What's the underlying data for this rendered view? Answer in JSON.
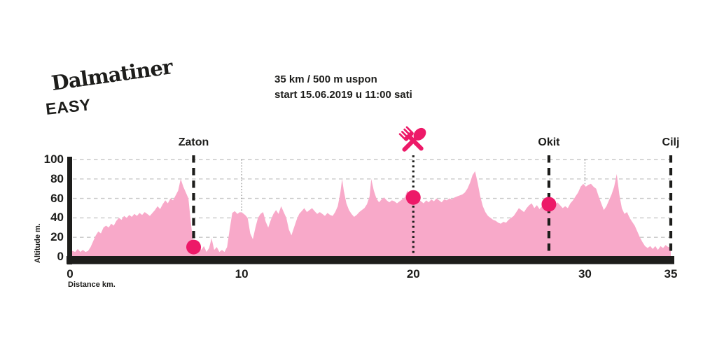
{
  "logo": {
    "title": "Dalmatiner",
    "subtitle": "EASY"
  },
  "info": {
    "line1": "35 km / 500 m uspon",
    "line2": "start 15.06.2019 u 11:00 sati"
  },
  "colors": {
    "area": "#f8a9c9",
    "accent": "#ed1968",
    "axis": "#1d1d1b",
    "grid_horizontal": "#c8c8c8",
    "grid_vertical": "#8c8c8c"
  },
  "chart_data": {
    "type": "area",
    "title": "",
    "xlabel": "Distance km.",
    "ylabel": "Altitude m.",
    "xlim": [
      0,
      35
    ],
    "ylim": [
      0,
      100
    ],
    "x_ticks": [
      0,
      10,
      20,
      30,
      35
    ],
    "y_ticks": [
      0,
      20,
      40,
      60,
      80,
      100
    ],
    "grid": {
      "horizontal": "dashed",
      "vertical_at": [
        10,
        30
      ]
    },
    "markers": [
      {
        "name": "zaton",
        "label": "Zaton",
        "km": 7.2,
        "altitude": 10,
        "dot": true,
        "line_style": "dashed"
      },
      {
        "name": "food-station",
        "label": "",
        "icon": "fork-and-spoon-icon",
        "km": 20,
        "altitude": 61,
        "dot": true,
        "line_style": "dotted"
      },
      {
        "name": "okit",
        "label": "Okit",
        "km": 27.9,
        "altitude": 54,
        "dot": true,
        "line_style": "dashed"
      },
      {
        "name": "cilj",
        "label": "Cilj",
        "km": 35,
        "altitude": null,
        "dot": false,
        "line_style": "dashed"
      }
    ],
    "profile": [
      [
        0,
        4
      ],
      [
        0.15,
        6
      ],
      [
        0.3,
        5
      ],
      [
        0.45,
        8
      ],
      [
        0.6,
        5
      ],
      [
        0.75,
        7
      ],
      [
        0.9,
        5
      ],
      [
        1.05,
        6
      ],
      [
        1.2,
        10
      ],
      [
        1.35,
        16
      ],
      [
        1.5,
        22
      ],
      [
        1.65,
        26
      ],
      [
        1.8,
        24
      ],
      [
        1.95,
        30
      ],
      [
        2.1,
        32
      ],
      [
        2.25,
        30
      ],
      [
        2.4,
        34
      ],
      [
        2.55,
        32
      ],
      [
        2.7,
        37
      ],
      [
        2.85,
        40
      ],
      [
        3,
        38
      ],
      [
        3.15,
        42
      ],
      [
        3.3,
        40
      ],
      [
        3.45,
        43
      ],
      [
        3.6,
        41
      ],
      [
        3.75,
        44
      ],
      [
        3.9,
        42
      ],
      [
        4.05,
        45
      ],
      [
        4.2,
        43
      ],
      [
        4.35,
        46
      ],
      [
        4.5,
        44
      ],
      [
        4.65,
        42
      ],
      [
        4.8,
        45
      ],
      [
        4.95,
        48
      ],
      [
        5.1,
        52
      ],
      [
        5.25,
        49
      ],
      [
        5.4,
        54
      ],
      [
        5.55,
        58
      ],
      [
        5.7,
        55
      ],
      [
        5.85,
        60
      ],
      [
        6,
        58
      ],
      [
        6.15,
        63
      ],
      [
        6.3,
        68
      ],
      [
        6.45,
        80
      ],
      [
        6.6,
        72
      ],
      [
        6.75,
        66
      ],
      [
        6.9,
        60
      ],
      [
        7,
        42
      ],
      [
        7.1,
        25
      ],
      [
        7.2,
        10
      ],
      [
        7.35,
        8
      ],
      [
        7.5,
        13
      ],
      [
        7.65,
        7
      ],
      [
        7.8,
        11
      ],
      [
        7.95,
        5
      ],
      [
        8.1,
        9
      ],
      [
        8.25,
        19
      ],
      [
        8.4,
        7
      ],
      [
        8.55,
        10
      ],
      [
        8.7,
        5
      ],
      [
        8.85,
        7
      ],
      [
        9,
        5
      ],
      [
        9.15,
        10
      ],
      [
        9.3,
        28
      ],
      [
        9.45,
        45
      ],
      [
        9.6,
        47
      ],
      [
        9.75,
        44
      ],
      [
        9.9,
        46
      ],
      [
        10.05,
        45
      ],
      [
        10.2,
        43
      ],
      [
        10.35,
        40
      ],
      [
        10.5,
        24
      ],
      [
        10.65,
        18
      ],
      [
        10.8,
        30
      ],
      [
        10.95,
        40
      ],
      [
        11.1,
        44
      ],
      [
        11.25,
        46
      ],
      [
        11.4,
        36
      ],
      [
        11.55,
        30
      ],
      [
        11.7,
        38
      ],
      [
        11.85,
        44
      ],
      [
        12,
        48
      ],
      [
        12.15,
        44
      ],
      [
        12.3,
        52
      ],
      [
        12.45,
        46
      ],
      [
        12.6,
        40
      ],
      [
        12.75,
        28
      ],
      [
        12.9,
        22
      ],
      [
        13.05,
        30
      ],
      [
        13.2,
        38
      ],
      [
        13.35,
        44
      ],
      [
        13.5,
        47
      ],
      [
        13.65,
        50
      ],
      [
        13.8,
        46
      ],
      [
        13.95,
        48
      ],
      [
        14.1,
        50
      ],
      [
        14.25,
        47
      ],
      [
        14.4,
        44
      ],
      [
        14.55,
        46
      ],
      [
        14.7,
        44
      ],
      [
        14.85,
        42
      ],
      [
        15,
        45
      ],
      [
        15.15,
        43
      ],
      [
        15.3,
        42
      ],
      [
        15.45,
        46
      ],
      [
        15.6,
        52
      ],
      [
        15.75,
        66
      ],
      [
        15.85,
        80
      ],
      [
        15.95,
        68
      ],
      [
        16.1,
        55
      ],
      [
        16.25,
        48
      ],
      [
        16.4,
        44
      ],
      [
        16.55,
        41
      ],
      [
        16.7,
        43
      ],
      [
        16.85,
        46
      ],
      [
        17,
        48
      ],
      [
        17.15,
        50
      ],
      [
        17.3,
        54
      ],
      [
        17.45,
        62
      ],
      [
        17.55,
        80
      ],
      [
        17.7,
        68
      ],
      [
        17.85,
        60
      ],
      [
        18,
        56
      ],
      [
        18.15,
        59
      ],
      [
        18.3,
        61
      ],
      [
        18.45,
        58
      ],
      [
        18.6,
        56
      ],
      [
        18.75,
        58
      ],
      [
        18.9,
        57
      ],
      [
        19.05,
        55
      ],
      [
        19.2,
        57
      ],
      [
        19.35,
        59
      ],
      [
        19.5,
        61
      ],
      [
        19.65,
        68
      ],
      [
        19.8,
        64
      ],
      [
        20,
        61
      ],
      [
        20.15,
        58
      ],
      [
        20.3,
        60
      ],
      [
        20.45,
        57
      ],
      [
        20.6,
        55
      ],
      [
        20.75,
        58
      ],
      [
        20.9,
        56
      ],
      [
        21.05,
        59
      ],
      [
        21.2,
        57
      ],
      [
        21.35,
        60
      ],
      [
        21.5,
        58
      ],
      [
        21.65,
        56
      ],
      [
        21.8,
        59
      ],
      [
        21.95,
        58
      ],
      [
        22.1,
        60
      ],
      [
        22.25,
        59
      ],
      [
        22.4,
        61
      ],
      [
        22.55,
        62
      ],
      [
        22.7,
        63
      ],
      [
        22.85,
        64
      ],
      [
        23,
        66
      ],
      [
        23.15,
        70
      ],
      [
        23.3,
        76
      ],
      [
        23.45,
        84
      ],
      [
        23.6,
        88
      ],
      [
        23.75,
        76
      ],
      [
        23.9,
        62
      ],
      [
        24.05,
        52
      ],
      [
        24.2,
        46
      ],
      [
        24.35,
        42
      ],
      [
        24.5,
        40
      ],
      [
        24.65,
        38
      ],
      [
        24.8,
        37
      ],
      [
        24.95,
        35
      ],
      [
        25.1,
        34
      ],
      [
        25.25,
        36
      ],
      [
        25.4,
        35
      ],
      [
        25.55,
        38
      ],
      [
        25.7,
        40
      ],
      [
        25.85,
        42
      ],
      [
        26,
        46
      ],
      [
        26.15,
        50
      ],
      [
        26.3,
        48
      ],
      [
        26.45,
        46
      ],
      [
        26.6,
        50
      ],
      [
        26.75,
        53
      ],
      [
        26.9,
        55
      ],
      [
        27.05,
        50
      ],
      [
        27.2,
        53
      ],
      [
        27.35,
        49
      ],
      [
        27.5,
        52
      ],
      [
        27.65,
        50
      ],
      [
        27.8,
        54
      ],
      [
        27.95,
        52
      ],
      [
        28.1,
        50
      ],
      [
        28.25,
        53
      ],
      [
        28.4,
        56
      ],
      [
        28.55,
        53
      ],
      [
        28.7,
        50
      ],
      [
        28.85,
        52
      ],
      [
        29,
        50
      ],
      [
        29.15,
        55
      ],
      [
        29.3,
        58
      ],
      [
        29.45,
        62
      ],
      [
        29.6,
        66
      ],
      [
        29.75,
        72
      ],
      [
        29.9,
        75
      ],
      [
        30.05,
        72
      ],
      [
        30.2,
        74
      ],
      [
        30.35,
        75
      ],
      [
        30.5,
        72
      ],
      [
        30.65,
        70
      ],
      [
        30.8,
        62
      ],
      [
        30.95,
        55
      ],
      [
        31.1,
        48
      ],
      [
        31.25,
        52
      ],
      [
        31.4,
        58
      ],
      [
        31.55,
        64
      ],
      [
        31.7,
        72
      ],
      [
        31.85,
        85
      ],
      [
        32,
        64
      ],
      [
        32.15,
        50
      ],
      [
        32.3,
        44
      ],
      [
        32.45,
        46
      ],
      [
        32.6,
        40
      ],
      [
        32.75,
        36
      ],
      [
        32.9,
        32
      ],
      [
        33.05,
        26
      ],
      [
        33.2,
        20
      ],
      [
        33.35,
        15
      ],
      [
        33.5,
        11
      ],
      [
        33.65,
        9
      ],
      [
        33.8,
        11
      ],
      [
        33.95,
        8
      ],
      [
        34.1,
        11
      ],
      [
        34.25,
        7
      ],
      [
        34.4,
        11
      ],
      [
        34.55,
        9
      ],
      [
        34.7,
        12
      ],
      [
        34.85,
        10
      ],
      [
        35,
        10
      ]
    ]
  }
}
